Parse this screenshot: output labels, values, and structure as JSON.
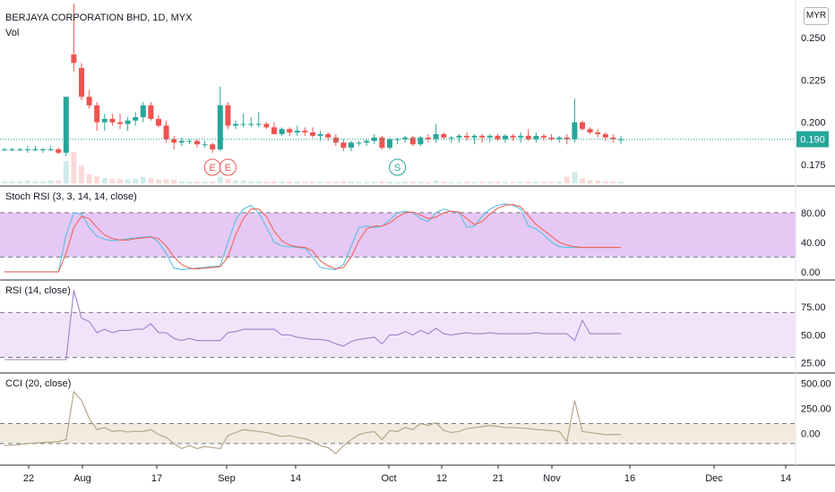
{
  "header": {
    "symbol_line": "BERJAYA CORPORATION BHD, 1D, MYX",
    "volume_label": "Vol",
    "currency": "MYR"
  },
  "colors": {
    "up": "#26a69a",
    "down": "#ef5350",
    "rsi_line": "#a080c8",
    "stoch_k": "#5bc0de",
    "stoch_d": "#f0645a",
    "cci_line": "#b0a080",
    "stoch_band": "#e6c8f5",
    "rsi_band": "#f1e4fa",
    "cci_band": "#f2ece0",
    "price_line": "#26a69a"
  },
  "chart_data": [
    {
      "type": "candlestick",
      "name_label": "",
      "ylim": [
        0.165,
        0.27
      ],
      "y_ticks": [
        0.175,
        0.2,
        0.225,
        0.25
      ],
      "y_tick_labels": [
        "0.175",
        "0.200",
        "0.225",
        "0.250"
      ],
      "last_price": 0.19,
      "last_price_label": "0.190",
      "x_ticks": [
        "22",
        "Aug",
        "17",
        "Sep",
        "14",
        "Oct",
        "12",
        "21",
        "Nov",
        "16",
        "Dec",
        "14"
      ],
      "candles": [
        [
          0.184,
          0.185,
          0.183,
          0.184,
          0.5
        ],
        [
          0.184,
          0.185,
          0.183,
          0.184,
          0.5
        ],
        [
          0.184,
          0.185,
          0.183,
          0.184,
          0.5
        ],
        [
          0.184,
          0.186,
          0.182,
          0.184,
          0.6
        ],
        [
          0.184,
          0.186,
          0.183,
          0.184,
          0.5
        ],
        [
          0.184,
          0.185,
          0.182,
          0.184,
          0.5
        ],
        [
          0.184,
          0.186,
          0.183,
          0.184,
          0.6
        ],
        [
          0.184,
          0.185,
          0.181,
          0.182,
          0.7
        ],
        [
          0.182,
          0.215,
          0.18,
          0.215,
          5.0
        ],
        [
          0.24,
          0.27,
          0.23,
          0.235,
          7.0
        ],
        [
          0.232,
          0.235,
          0.213,
          0.215,
          4.0
        ],
        [
          0.215,
          0.219,
          0.208,
          0.21,
          2.0
        ],
        [
          0.21,
          0.212,
          0.195,
          0.2,
          1.6
        ],
        [
          0.2,
          0.205,
          0.195,
          0.202,
          1.2
        ],
        [
          0.202,
          0.205,
          0.198,
          0.2,
          1.0
        ],
        [
          0.2,
          0.205,
          0.196,
          0.199,
          1.0
        ],
        [
          0.199,
          0.203,
          0.195,
          0.201,
          0.9
        ],
        [
          0.201,
          0.206,
          0.198,
          0.203,
          1.0
        ],
        [
          0.203,
          0.212,
          0.2,
          0.21,
          1.4
        ],
        [
          0.21,
          0.212,
          0.201,
          0.202,
          1.1
        ],
        [
          0.202,
          0.204,
          0.197,
          0.198,
          0.9
        ],
        [
          0.198,
          0.201,
          0.188,
          0.19,
          0.9
        ],
        [
          0.19,
          0.192,
          0.184,
          0.188,
          0.8
        ],
        [
          0.188,
          0.191,
          0.186,
          0.189,
          0.5
        ],
        [
          0.189,
          0.19,
          0.187,
          0.189,
          0.4
        ],
        [
          0.189,
          0.19,
          0.185,
          0.187,
          0.4
        ],
        [
          0.187,
          0.189,
          0.185,
          0.187,
          0.4
        ],
        [
          0.187,
          0.188,
          0.182,
          0.184,
          0.4
        ],
        [
          0.184,
          0.221,
          0.183,
          0.21,
          1.5
        ],
        [
          0.21,
          0.212,
          0.196,
          0.198,
          1.0
        ],
        [
          0.198,
          0.201,
          0.196,
          0.199,
          0.6
        ],
        [
          0.199,
          0.205,
          0.197,
          0.199,
          0.6
        ],
        [
          0.199,
          0.203,
          0.197,
          0.199,
          0.5
        ],
        [
          0.199,
          0.206,
          0.197,
          0.199,
          0.5
        ],
        [
          0.199,
          0.2,
          0.196,
          0.197,
          0.4
        ],
        [
          0.197,
          0.2,
          0.194,
          0.193,
          0.5
        ],
        [
          0.193,
          0.197,
          0.192,
          0.196,
          0.4
        ],
        [
          0.196,
          0.197,
          0.192,
          0.194,
          0.4
        ],
        [
          0.194,
          0.198,
          0.192,
          0.195,
          0.4
        ],
        [
          0.195,
          0.197,
          0.192,
          0.194,
          0.3
        ],
        [
          0.194,
          0.197,
          0.191,
          0.192,
          0.3
        ],
        [
          0.192,
          0.195,
          0.189,
          0.193,
          0.3
        ],
        [
          0.193,
          0.194,
          0.189,
          0.191,
          0.3
        ],
        [
          0.191,
          0.193,
          0.186,
          0.188,
          0.4
        ],
        [
          0.188,
          0.19,
          0.183,
          0.185,
          0.5
        ],
        [
          0.185,
          0.189,
          0.183,
          0.188,
          0.4
        ],
        [
          0.188,
          0.189,
          0.186,
          0.188,
          0.3
        ],
        [
          0.188,
          0.19,
          0.186,
          0.189,
          0.3
        ],
        [
          0.189,
          0.193,
          0.187,
          0.191,
          0.4
        ],
        [
          0.191,
          0.192,
          0.184,
          0.185,
          0.5
        ],
        [
          0.185,
          0.191,
          0.184,
          0.19,
          0.4
        ],
        [
          0.19,
          0.191,
          0.187,
          0.19,
          0.3
        ],
        [
          0.19,
          0.192,
          0.188,
          0.191,
          0.4
        ],
        [
          0.191,
          0.192,
          0.186,
          0.187,
          0.4
        ],
        [
          0.187,
          0.192,
          0.186,
          0.191,
          0.4
        ],
        [
          0.191,
          0.193,
          0.188,
          0.19,
          0.3
        ],
        [
          0.19,
          0.199,
          0.188,
          0.193,
          0.6
        ],
        [
          0.193,
          0.194,
          0.19,
          0.191,
          0.4
        ],
        [
          0.191,
          0.192,
          0.188,
          0.191,
          0.3
        ],
        [
          0.191,
          0.193,
          0.188,
          0.192,
          0.3
        ],
        [
          0.192,
          0.194,
          0.189,
          0.191,
          0.3
        ],
        [
          0.191,
          0.193,
          0.187,
          0.192,
          0.3
        ],
        [
          0.192,
          0.193,
          0.188,
          0.191,
          0.3
        ],
        [
          0.191,
          0.193,
          0.188,
          0.192,
          0.3
        ],
        [
          0.192,
          0.193,
          0.189,
          0.19,
          0.3
        ],
        [
          0.19,
          0.193,
          0.188,
          0.192,
          0.3
        ],
        [
          0.192,
          0.193,
          0.189,
          0.191,
          0.3
        ],
        [
          0.191,
          0.194,
          0.188,
          0.192,
          0.3
        ],
        [
          0.192,
          0.196,
          0.189,
          0.19,
          0.4
        ],
        [
          0.19,
          0.194,
          0.188,
          0.192,
          0.4
        ],
        [
          0.192,
          0.193,
          0.189,
          0.191,
          0.3
        ],
        [
          0.191,
          0.193,
          0.189,
          0.19,
          0.3
        ],
        [
          0.19,
          0.192,
          0.188,
          0.191,
          0.4
        ],
        [
          0.191,
          0.193,
          0.187,
          0.19,
          1.5
        ],
        [
          0.19,
          0.214,
          0.188,
          0.2,
          2.5
        ],
        [
          0.2,
          0.201,
          0.195,
          0.196,
          1.1
        ],
        [
          0.196,
          0.197,
          0.193,
          0.194,
          0.7
        ],
        [
          0.194,
          0.196,
          0.191,
          0.193,
          0.6
        ],
        [
          0.193,
          0.194,
          0.189,
          0.191,
          0.5
        ],
        [
          0.191,
          0.193,
          0.188,
          0.19,
          0.5
        ],
        [
          0.19,
          0.192,
          0.187,
          0.19,
          0.4
        ]
      ]
    },
    {
      "type": "line",
      "name_label": "Stoch RSI (3, 3, 14, 14, close)",
      "ylim": [
        -5,
        110
      ],
      "y_ticks": [
        0,
        40,
        80
      ],
      "y_tick_labels": [
        "0.00",
        "40.00",
        "80.00"
      ],
      "bands": [
        20,
        80
      ],
      "series_k": [
        0,
        0,
        0,
        0,
        0,
        0,
        0,
        0,
        50,
        80,
        78,
        60,
        48,
        44,
        42,
        43,
        45,
        46,
        47,
        48,
        40,
        25,
        5,
        3,
        4,
        5,
        6,
        7,
        8,
        40,
        70,
        85,
        90,
        80,
        60,
        40,
        35,
        34,
        33,
        32,
        20,
        6,
        4,
        3,
        10,
        35,
        60,
        62,
        60,
        62,
        70,
        80,
        82,
        80,
        72,
        68,
        80,
        85,
        82,
        80,
        60,
        62,
        75,
        85,
        90,
        92,
        90,
        85,
        62,
        58,
        50,
        40,
        34,
        33,
        33,
        33,
        33,
        33,
        33,
        33,
        33
      ],
      "series_d": [
        0,
        0,
        0,
        0,
        0,
        0,
        0,
        0,
        25,
        60,
        75,
        72,
        60,
        50,
        45,
        43,
        43,
        45,
        46,
        47,
        45,
        35,
        20,
        10,
        5,
        4,
        5,
        6,
        7,
        20,
        50,
        72,
        85,
        85,
        75,
        55,
        42,
        36,
        34,
        33,
        28,
        15,
        8,
        4,
        6,
        20,
        42,
        58,
        62,
        62,
        66,
        74,
        80,
        81,
        77,
        72,
        74,
        80,
        82,
        81,
        72,
        64,
        68,
        78,
        86,
        90,
        91,
        88,
        76,
        64,
        56,
        48,
        40,
        36,
        34,
        33,
        33,
        33,
        33,
        33,
        33
      ]
    },
    {
      "type": "line",
      "name_label": "RSI (14, close)",
      "ylim": [
        20,
        95
      ],
      "y_ticks": [
        25,
        50,
        75
      ],
      "y_tick_labels": [
        "25.00",
        "50.00",
        "75.00"
      ],
      "bands": [
        30,
        70
      ],
      "series": [
        28,
        28,
        28,
        28,
        28,
        28,
        28,
        28,
        28,
        90,
        65,
        62,
        52,
        55,
        52,
        54,
        54,
        55,
        55,
        60,
        52,
        52,
        47,
        45,
        47,
        45,
        45,
        45,
        45,
        52,
        53,
        55,
        55,
        55,
        55,
        55,
        50,
        50,
        48,
        47,
        46,
        46,
        45,
        42,
        40,
        44,
        46,
        47,
        48,
        42,
        50,
        50,
        53,
        50,
        54,
        51,
        56,
        51,
        50,
        51,
        52,
        51,
        51,
        52,
        51,
        51,
        51,
        51,
        51,
        52,
        51,
        51,
        51,
        51,
        45,
        63,
        51,
        51,
        51,
        51,
        51
      ],
      "stop_index": 80
    },
    {
      "type": "line",
      "name_label": "CCI (20, close)",
      "ylim": [
        -280,
        560
      ],
      "y_ticks": [
        0,
        250,
        500
      ],
      "y_tick_labels": [
        "0.00",
        "250.00",
        "500.00"
      ],
      "bands": [
        -100,
        100
      ],
      "series": [
        -120,
        -115,
        -110,
        -100,
        -95,
        -90,
        -85,
        -80,
        -60,
        420,
        330,
        150,
        40,
        60,
        20,
        30,
        15,
        25,
        20,
        40,
        -10,
        -40,
        -100,
        -150,
        -120,
        -150,
        -130,
        -140,
        -150,
        -20,
        10,
        40,
        30,
        20,
        10,
        -10,
        -30,
        -20,
        -40,
        -50,
        -80,
        -120,
        -140,
        -200,
        -120,
        -60,
        -10,
        10,
        20,
        -60,
        30,
        20,
        60,
        40,
        100,
        80,
        110,
        30,
        10,
        20,
        50,
        60,
        70,
        80,
        70,
        60,
        60,
        55,
        50,
        40,
        35,
        30,
        20,
        -80,
        330,
        20,
        10,
        0,
        -10,
        -10,
        -10
      ],
      "stop_index": 80
    }
  ],
  "events": [
    {
      "label": "E",
      "kind": "earnings",
      "index": 27
    },
    {
      "label": "E",
      "kind": "earnings",
      "index": 29
    },
    {
      "label": "S",
      "kind": "split",
      "index": 51
    }
  ]
}
